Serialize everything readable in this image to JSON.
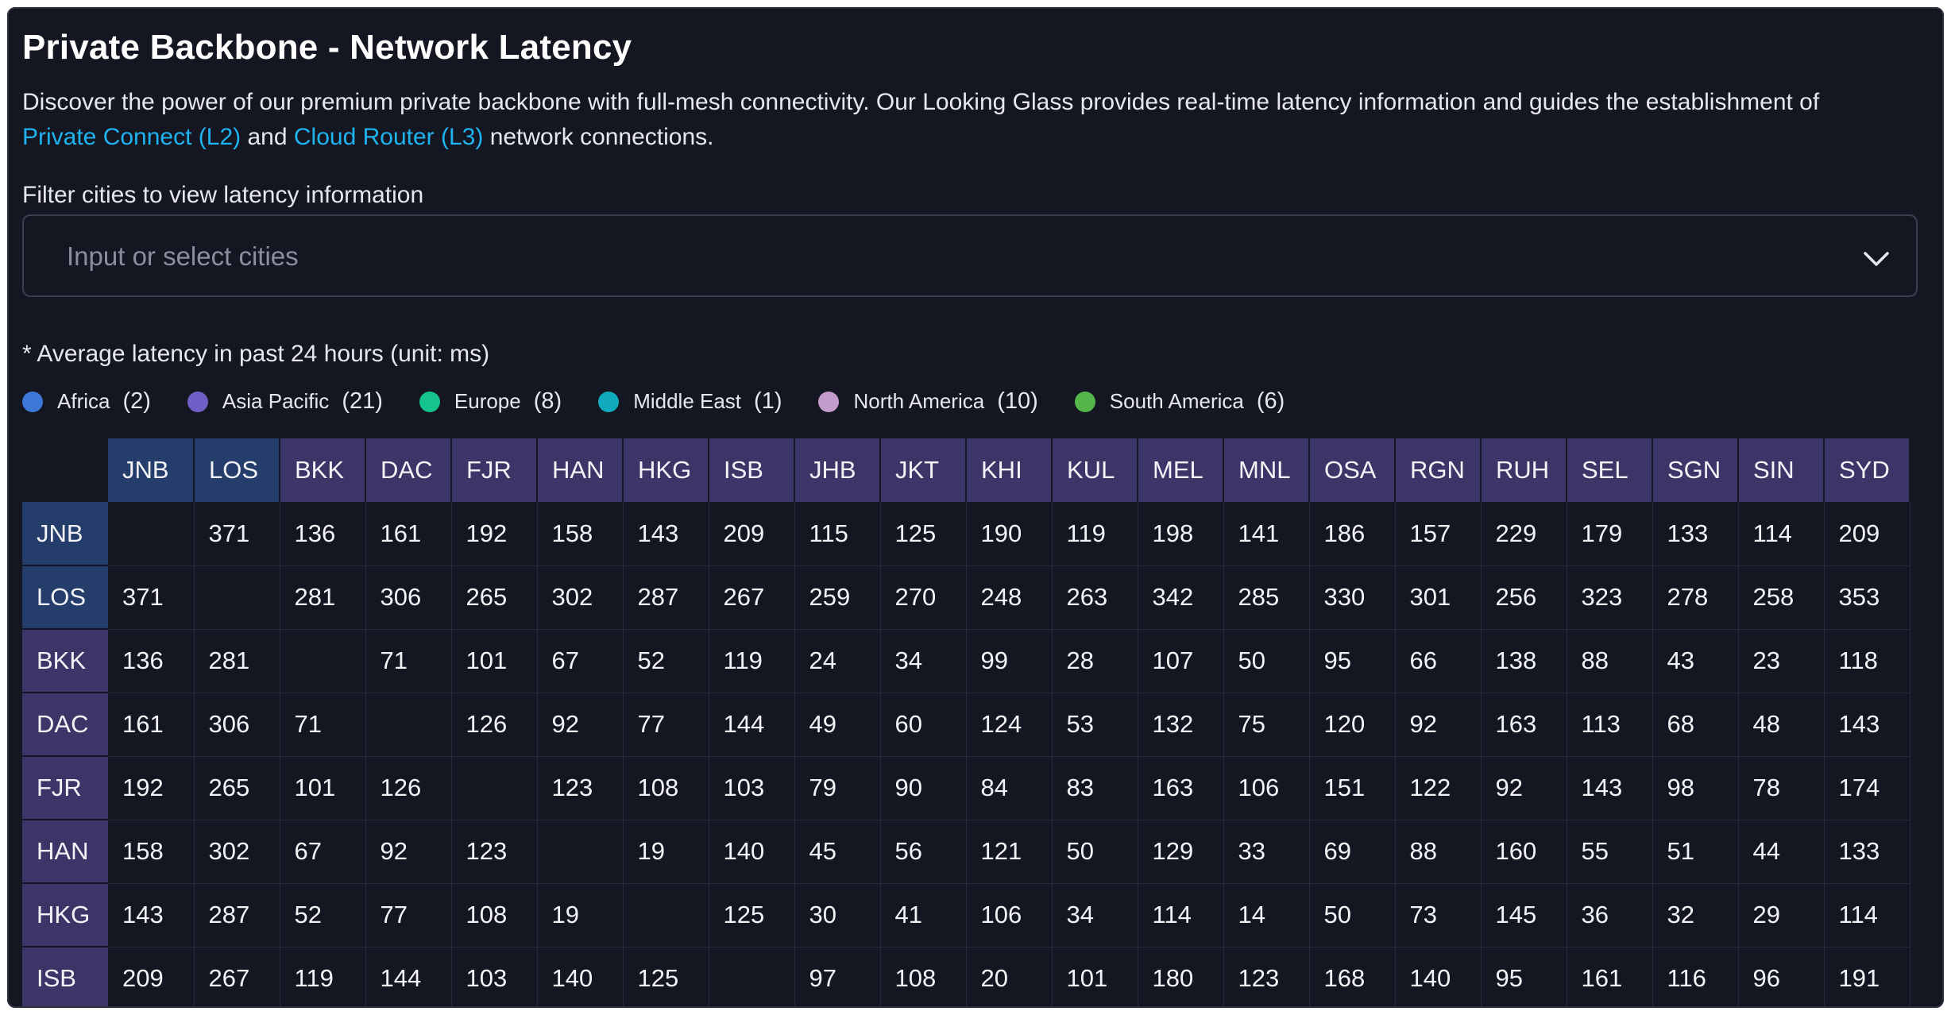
{
  "page": {
    "title": "Private Backbone - Network Latency",
    "description_part1": "Discover the power of our premium private backbone with full-mesh connectivity. Our Looking Glass provides real-time latency information and guides the establishment of",
    "link1": "Private Connect (L2)",
    "and_text": "and",
    "link2": "Cloud Router (L3)",
    "description_part2": "network connections.",
    "filter_label": "Filter cities to view latency information",
    "filter_placeholder": "Input or select cities",
    "note": "* Average latency in past 24 hours (unit: ms)"
  },
  "legend": [
    {
      "name": "Africa",
      "count": "(2)",
      "color": "#3d78d8"
    },
    {
      "name": "Asia Pacific",
      "count": "(21)",
      "color": "#6f5fc7"
    },
    {
      "name": "Europe",
      "count": "(8)",
      "color": "#14c48c"
    },
    {
      "name": "Middle East",
      "count": "(1)",
      "color": "#11a9bd"
    },
    {
      "name": "North America",
      "count": "(10)",
      "color": "#c49ccb"
    },
    {
      "name": "South America",
      "count": "(6)",
      "color": "#54b64a"
    }
  ],
  "colors": {
    "africa_header": "#253d6b",
    "asia_pacific_header": "#3c3568",
    "link": "#1fb4f0"
  },
  "matrix": {
    "columns": [
      "JNB",
      "LOS",
      "BKK",
      "DAC",
      "FJR",
      "HAN",
      "HKG",
      "ISB",
      "JHB",
      "JKT",
      "KHI",
      "KUL",
      "MEL",
      "MNL",
      "OSA",
      "RGN",
      "RUH",
      "SEL",
      "SGN",
      "SIN",
      "SYD"
    ],
    "column_regions": [
      "africa",
      "africa",
      "apac",
      "apac",
      "apac",
      "apac",
      "apac",
      "apac",
      "apac",
      "apac",
      "apac",
      "apac",
      "apac",
      "apac",
      "apac",
      "apac",
      "apac",
      "apac",
      "apac",
      "apac",
      "apac"
    ],
    "rows": [
      {
        "city": "JNB",
        "region": "africa",
        "values": [
          "",
          "371",
          "136",
          "161",
          "192",
          "158",
          "143",
          "209",
          "115",
          "125",
          "190",
          "119",
          "198",
          "141",
          "186",
          "157",
          "229",
          "179",
          "133",
          "114",
          "209"
        ]
      },
      {
        "city": "LOS",
        "region": "africa",
        "values": [
          "371",
          "",
          "281",
          "306",
          "265",
          "302",
          "287",
          "267",
          "259",
          "270",
          "248",
          "263",
          "342",
          "285",
          "330",
          "301",
          "256",
          "323",
          "278",
          "258",
          "353"
        ]
      },
      {
        "city": "BKK",
        "region": "apac",
        "values": [
          "136",
          "281",
          "",
          "71",
          "101",
          "67",
          "52",
          "119",
          "24",
          "34",
          "99",
          "28",
          "107",
          "50",
          "95",
          "66",
          "138",
          "88",
          "43",
          "23",
          "118"
        ]
      },
      {
        "city": "DAC",
        "region": "apac",
        "values": [
          "161",
          "306",
          "71",
          "",
          "126",
          "92",
          "77",
          "144",
          "49",
          "60",
          "124",
          "53",
          "132",
          "75",
          "120",
          "92",
          "163",
          "113",
          "68",
          "48",
          "143"
        ]
      },
      {
        "city": "FJR",
        "region": "apac",
        "values": [
          "192",
          "265",
          "101",
          "126",
          "",
          "123",
          "108",
          "103",
          "79",
          "90",
          "84",
          "83",
          "163",
          "106",
          "151",
          "122",
          "92",
          "143",
          "98",
          "78",
          "174"
        ]
      },
      {
        "city": "HAN",
        "region": "apac",
        "values": [
          "158",
          "302",
          "67",
          "92",
          "123",
          "",
          "19",
          "140",
          "45",
          "56",
          "121",
          "50",
          "129",
          "33",
          "69",
          "88",
          "160",
          "55",
          "51",
          "44",
          "133"
        ]
      },
      {
        "city": "HKG",
        "region": "apac",
        "values": [
          "143",
          "287",
          "52",
          "77",
          "108",
          "19",
          "",
          "125",
          "30",
          "41",
          "106",
          "34",
          "114",
          "14",
          "50",
          "73",
          "145",
          "36",
          "32",
          "29",
          "114"
        ]
      },
      {
        "city": "ISB",
        "region": "apac",
        "values": [
          "209",
          "267",
          "119",
          "144",
          "103",
          "140",
          "125",
          "",
          "97",
          "108",
          "20",
          "101",
          "180",
          "123",
          "168",
          "140",
          "95",
          "161",
          "116",
          "96",
          "191"
        ]
      }
    ]
  }
}
